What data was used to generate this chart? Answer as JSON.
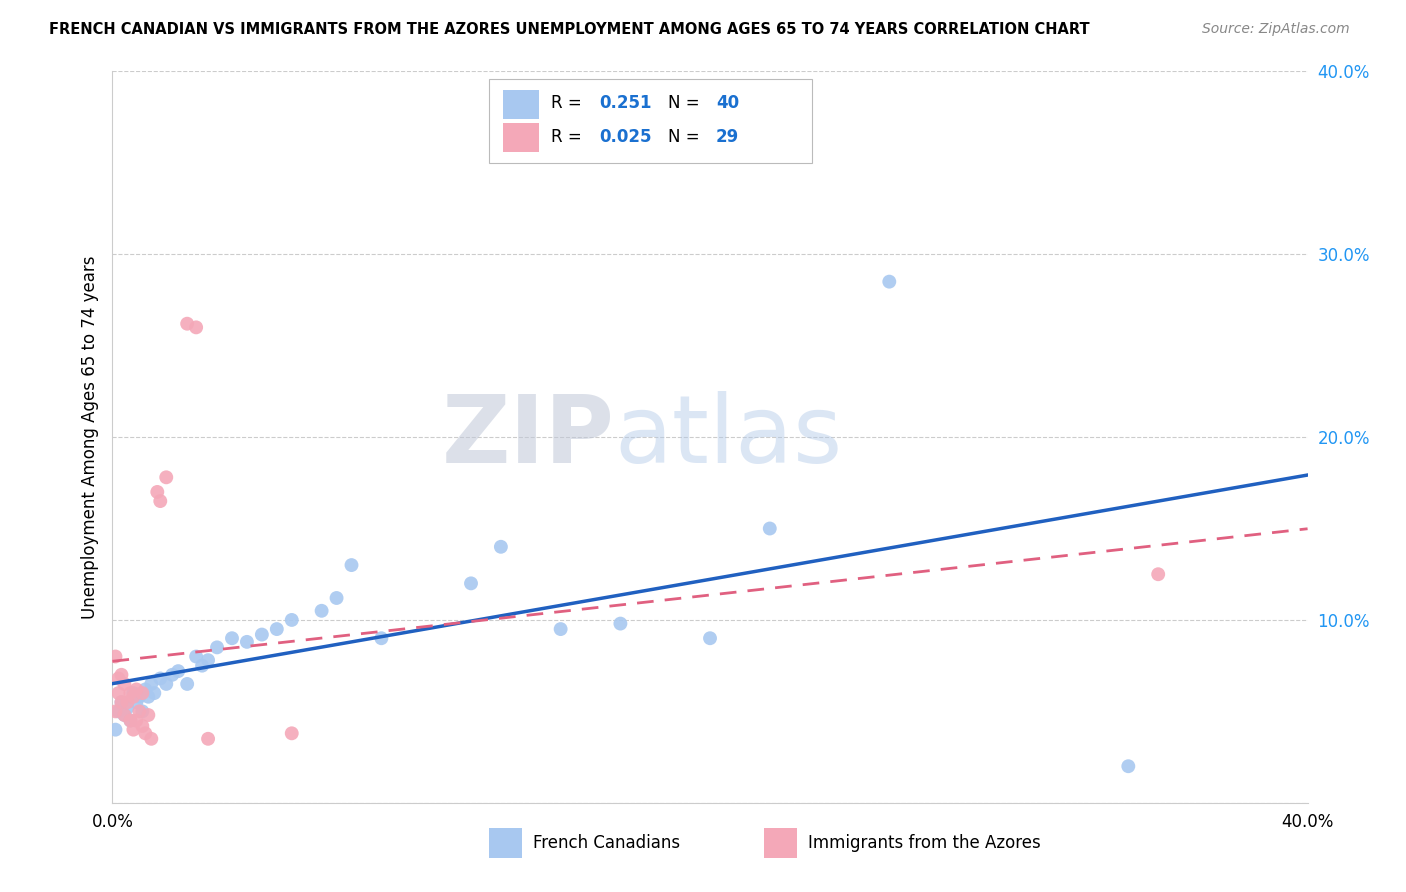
{
  "title": "FRENCH CANADIAN VS IMMIGRANTS FROM THE AZORES UNEMPLOYMENT AMONG AGES 65 TO 74 YEARS CORRELATION CHART",
  "source": "Source: ZipAtlas.com",
  "ylabel": "Unemployment Among Ages 65 to 74 years",
  "xlim": [
    0.0,
    0.4
  ],
  "ylim": [
    0.0,
    0.4
  ],
  "yticks": [
    0.0,
    0.1,
    0.2,
    0.3,
    0.4
  ],
  "ytick_labels": [
    "",
    "10.0%",
    "20.0%",
    "30.0%",
    "40.0%"
  ],
  "xticks": [
    0.0,
    0.1,
    0.2,
    0.3,
    0.4
  ],
  "xtick_labels": [
    "0.0%",
    "",
    "",
    "",
    "40.0%"
  ],
  "blue_R": 0.251,
  "blue_N": 40,
  "pink_R": 0.025,
  "pink_N": 29,
  "blue_color": "#a8c8f0",
  "pink_color": "#f4a8b8",
  "blue_line_color": "#2060c0",
  "pink_line_color": "#e06080",
  "watermark_zip": "ZIP",
  "watermark_atlas": "atlas",
  "blue_x": [
    0.001,
    0.002,
    0.003,
    0.004,
    0.005,
    0.006,
    0.007,
    0.008,
    0.009,
    0.01,
    0.011,
    0.012,
    0.013,
    0.014,
    0.016,
    0.018,
    0.02,
    0.022,
    0.025,
    0.028,
    0.03,
    0.032,
    0.035,
    0.04,
    0.045,
    0.05,
    0.055,
    0.06,
    0.07,
    0.075,
    0.08,
    0.09,
    0.12,
    0.13,
    0.15,
    0.17,
    0.2,
    0.22,
    0.26,
    0.34
  ],
  "blue_y": [
    0.04,
    0.05,
    0.055,
    0.048,
    0.052,
    0.045,
    0.06,
    0.055,
    0.058,
    0.05,
    0.062,
    0.058,
    0.065,
    0.06,
    0.068,
    0.065,
    0.07,
    0.072,
    0.065,
    0.08,
    0.075,
    0.078,
    0.085,
    0.09,
    0.088,
    0.092,
    0.095,
    0.1,
    0.105,
    0.112,
    0.13,
    0.09,
    0.12,
    0.14,
    0.095,
    0.098,
    0.09,
    0.15,
    0.285,
    0.02
  ],
  "pink_x": [
    0.001,
    0.001,
    0.002,
    0.002,
    0.003,
    0.003,
    0.004,
    0.004,
    0.005,
    0.006,
    0.006,
    0.007,
    0.007,
    0.008,
    0.008,
    0.009,
    0.01,
    0.01,
    0.011,
    0.012,
    0.013,
    0.015,
    0.016,
    0.018,
    0.025,
    0.028,
    0.032,
    0.06,
    0.35
  ],
  "pink_y": [
    0.05,
    0.08,
    0.06,
    0.068,
    0.055,
    0.07,
    0.048,
    0.065,
    0.055,
    0.06,
    0.045,
    0.058,
    0.04,
    0.062,
    0.045,
    0.05,
    0.06,
    0.042,
    0.038,
    0.048,
    0.035,
    0.17,
    0.165,
    0.178,
    0.262,
    0.26,
    0.035,
    0.038,
    0.125
  ]
}
